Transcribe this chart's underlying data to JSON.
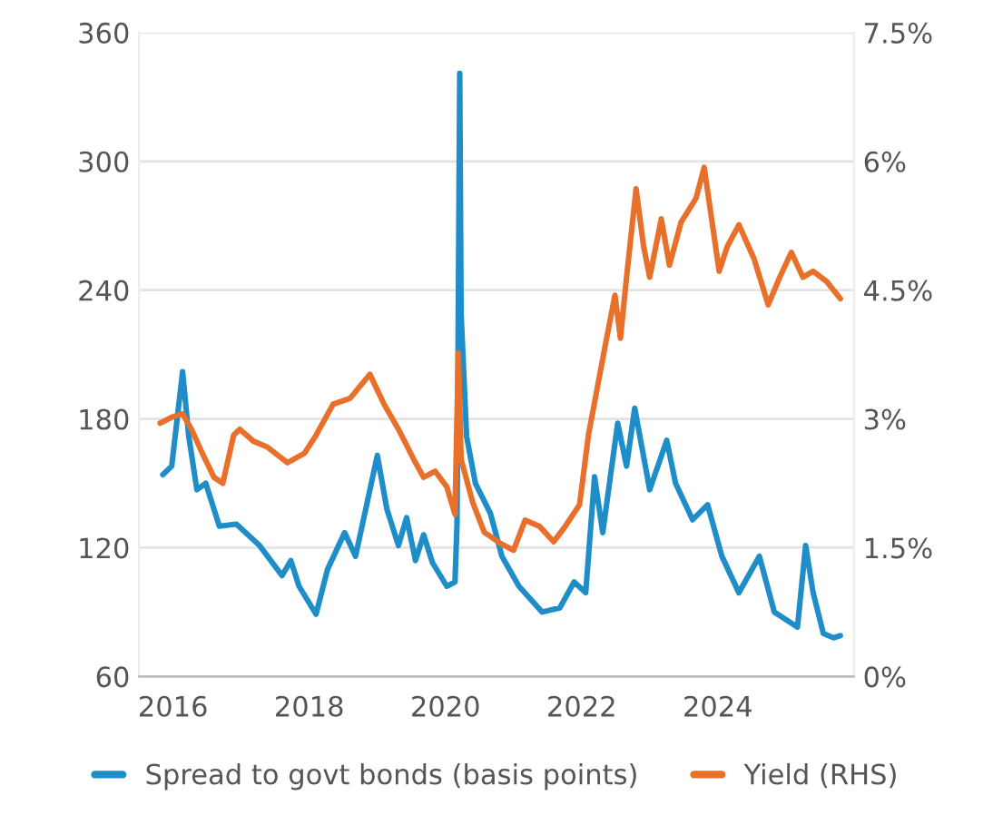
{
  "chart_data": {
    "type": "line",
    "grid": "y",
    "legend": "bottom",
    "line_style": "solid",
    "xlim": [
      2015.5,
      2026
    ],
    "xticks": [
      2016,
      2018,
      2020,
      2022,
      2024
    ],
    "ylim": [
      60,
      360
    ],
    "yticks": [
      60,
      120,
      180,
      240,
      300,
      360
    ],
    "y2lim": [
      0,
      7.5
    ],
    "y2ticks": [
      {
        "value": 0,
        "label": "0%"
      },
      {
        "value": 1.5,
        "label": "1.5%"
      },
      {
        "value": 3,
        "label": "3%"
      },
      {
        "value": 4.5,
        "label": "4.5%"
      },
      {
        "value": 6,
        "label": "6%"
      },
      {
        "value": 7.5,
        "label": "7.5%"
      }
    ],
    "series": [
      {
        "name": "Spread to govt bonds (basis points)",
        "color": "#1f8dc8",
        "x": [
          2015.85,
          2015.98,
          2016.14,
          2016.23,
          2016.35,
          2016.48,
          2016.68,
          2016.93,
          2017.27,
          2017.6,
          2017.73,
          2017.85,
          2018.1,
          2018.27,
          2018.52,
          2018.68,
          2019.0,
          2019.14,
          2019.31,
          2019.43,
          2019.56,
          2019.68,
          2019.81,
          2020.02,
          2020.14,
          2020.17,
          2020.21,
          2020.23,
          2020.31,
          2020.44,
          2020.66,
          2020.83,
          2021.08,
          2021.42,
          2021.68,
          2021.89,
          2022.06,
          2022.19,
          2022.31,
          2022.53,
          2022.66,
          2022.78,
          2023.0,
          2023.25,
          2023.38,
          2023.63,
          2023.85,
          2024.06,
          2024.31,
          2024.61,
          2024.83,
          2025.17,
          2025.29,
          2025.4,
          2025.55,
          2025.7,
          2025.8
        ],
        "values": [
          154,
          158,
          202,
          172,
          147,
          150,
          130,
          131,
          121,
          107,
          114,
          102,
          89,
          110,
          127,
          116,
          163,
          138,
          121,
          134,
          114,
          126,
          113,
          102,
          104,
          131,
          341,
          229,
          172,
          150,
          136,
          116,
          102,
          90,
          92,
          104,
          99,
          153,
          127,
          178,
          158,
          185,
          147,
          170,
          150,
          133,
          140,
          116,
          99,
          116,
          90,
          83,
          121,
          99,
          80,
          78,
          79
        ]
      },
      {
        "name": "Yield (RHS)",
        "color": "#e8702a",
        "axis": "y2",
        "x": [
          2015.81,
          2015.98,
          2016.14,
          2016.27,
          2016.43,
          2016.6,
          2016.73,
          2016.89,
          2016.98,
          2017.18,
          2017.39,
          2017.68,
          2017.93,
          2018.1,
          2018.35,
          2018.6,
          2018.89,
          2019.1,
          2019.31,
          2019.56,
          2019.68,
          2019.85,
          2020.02,
          2020.14,
          2020.19,
          2020.23,
          2020.4,
          2020.57,
          2020.83,
          2021.0,
          2021.17,
          2021.38,
          2021.59,
          2021.76,
          2021.97,
          2022.1,
          2022.36,
          2022.49,
          2022.57,
          2022.66,
          2022.8,
          2022.91,
          2023.0,
          2023.17,
          2023.29,
          2023.46,
          2023.68,
          2023.8,
          2024.02,
          2024.14,
          2024.31,
          2024.53,
          2024.74,
          2024.91,
          2025.08,
          2025.25,
          2025.4,
          2025.6,
          2025.8
        ],
        "values": [
          2.95,
          3.02,
          3.06,
          2.88,
          2.6,
          2.32,
          2.25,
          2.81,
          2.88,
          2.74,
          2.67,
          2.49,
          2.6,
          2.81,
          3.17,
          3.24,
          3.52,
          3.17,
          2.88,
          2.49,
          2.32,
          2.39,
          2.21,
          1.89,
          3.77,
          2.53,
          2.03,
          1.68,
          1.54,
          1.47,
          1.82,
          1.75,
          1.57,
          1.75,
          2.0,
          2.81,
          3.91,
          4.44,
          3.94,
          4.65,
          5.68,
          5.01,
          4.65,
          5.33,
          4.79,
          5.29,
          5.57,
          5.93,
          4.72,
          5.01,
          5.26,
          4.87,
          4.33,
          4.65,
          4.94,
          4.65,
          4.72,
          4.6,
          4.4
        ]
      }
    ]
  }
}
